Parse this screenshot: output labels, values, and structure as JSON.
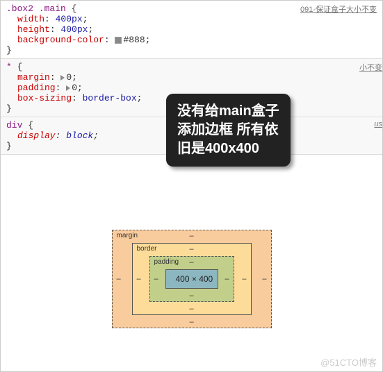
{
  "rules": [
    {
      "selector": ".box2 .main",
      "file": "091-保证盒子大小不变",
      "file_clipped": false,
      "bg": "#ffffff",
      "declarations": [
        {
          "prop": "width",
          "value": "400px",
          "is_num": true
        },
        {
          "prop": "height",
          "value": "400px",
          "is_num": true
        },
        {
          "prop": "background-color",
          "value": "#888",
          "swatch": "#888888"
        }
      ]
    },
    {
      "selector": "*",
      "file": "小不变",
      "file_clipped": true,
      "bg": "#f8f8f8",
      "declarations": [
        {
          "prop": "margin",
          "value": "0",
          "triangle": true
        },
        {
          "prop": "padding",
          "value": "0",
          "triangle": true
        },
        {
          "prop": "box-sizing",
          "value": "border-box",
          "is_kw": true
        }
      ]
    },
    {
      "selector": "div",
      "file": "us",
      "file_clipped": true,
      "italic_file": true,
      "bg": "#f8f8f8",
      "declarations": [
        {
          "prop": "display",
          "value": "block",
          "is_kw": true,
          "italic": true
        }
      ]
    }
  ],
  "tooltip": {
    "line1_pre": "没有给",
    "line1_hl": "main",
    "line1_post": "盒子",
    "line2": "添加边框 所有依",
    "line3_pre": "旧是",
    "line3_hl": "400x400"
  },
  "box_model": {
    "margin_label": "margin",
    "border_label": "border",
    "padding_label": "padding",
    "content": "400 × 400",
    "dash": "–",
    "colors": {
      "margin": "#f9cc9d",
      "border": "#fddc9a",
      "padding": "#c2cf8a",
      "content": "#8cb6c0"
    }
  },
  "watermark": "@51CTO博客"
}
